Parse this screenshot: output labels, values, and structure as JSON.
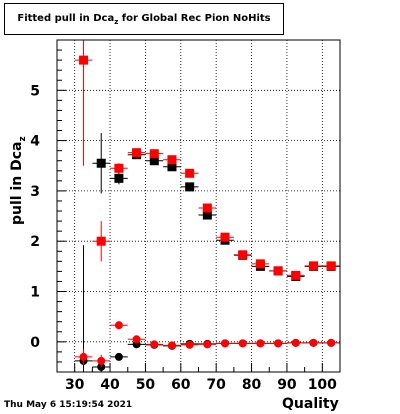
{
  "title": {
    "main": "Fitted pull in Dca",
    "sub": "z",
    "rest": " for Global Rec Pion NoHits"
  },
  "axes": {
    "ylabel_main": "pull in Dca",
    "ylabel_sub": "z",
    "xlabel": "Quality"
  },
  "timestamp": "Thu May  6 15:19:54 2021",
  "chart_data": {
    "type": "scatter",
    "xlim": [
      25,
      105
    ],
    "ylim": [
      -0.6,
      6.0
    ],
    "x_ticks": [
      30,
      40,
      50,
      60,
      70,
      80,
      90,
      100
    ],
    "y_ticks": [
      0,
      1,
      2,
      3,
      4,
      5
    ],
    "grid": true,
    "series": [
      {
        "marker": "square",
        "color": "#000000",
        "points": [
          {
            "x": 37.5,
            "y": 3.55,
            "xerr": 2.5,
            "yerr": 0.6
          },
          {
            "x": 42.5,
            "y": 3.25,
            "xerr": 2.5,
            "yerr": 0.12
          },
          {
            "x": 47.5,
            "y": 3.72,
            "xerr": 2.5,
            "yerr": 0.05
          },
          {
            "x": 52.5,
            "y": 3.6,
            "xerr": 2.5,
            "yerr": 0.05
          },
          {
            "x": 57.5,
            "y": 3.48,
            "xerr": 2.5,
            "yerr": 0.05
          },
          {
            "x": 62.5,
            "y": 3.08,
            "xerr": 2.5,
            "yerr": 0.05
          },
          {
            "x": 67.5,
            "y": 2.52,
            "xerr": 2.5,
            "yerr": 0.05
          },
          {
            "x": 72.5,
            "y": 2.02,
            "xerr": 2.5,
            "yerr": 0.04
          },
          {
            "x": 77.5,
            "y": 1.72,
            "xerr": 2.5,
            "yerr": 0.04
          },
          {
            "x": 82.5,
            "y": 1.5,
            "xerr": 2.5,
            "yerr": 0.04
          },
          {
            "x": 87.5,
            "y": 1.41,
            "xerr": 2.5,
            "yerr": 0.04
          },
          {
            "x": 92.5,
            "y": 1.3,
            "xerr": 2.5,
            "yerr": 0.04
          },
          {
            "x": 97.5,
            "y": 1.5,
            "xerr": 2.5,
            "yerr": 0.04
          },
          {
            "x": 102.5,
            "y": 1.5,
            "xerr": 2.5,
            "yerr": 0.04
          }
        ]
      },
      {
        "marker": "square",
        "color": "#ff0000",
        "points": [
          {
            "x": 32.5,
            "y": 5.6,
            "xerr": 2.5,
            "yerr": 2.1
          },
          {
            "x": 37.5,
            "y": 2.0,
            "xerr": 2.5,
            "yerr": 0.4
          },
          {
            "x": 42.5,
            "y": 3.45,
            "xerr": 2.5,
            "yerr": 0.1
          },
          {
            "x": 47.5,
            "y": 3.76,
            "xerr": 2.5,
            "yerr": 0.05
          },
          {
            "x": 52.5,
            "y": 3.74,
            "xerr": 2.5,
            "yerr": 0.05
          },
          {
            "x": 57.5,
            "y": 3.62,
            "xerr": 2.5,
            "yerr": 0.05
          },
          {
            "x": 62.5,
            "y": 3.35,
            "xerr": 2.5,
            "yerr": 0.05
          },
          {
            "x": 67.5,
            "y": 2.66,
            "xerr": 2.5,
            "yerr": 0.05
          },
          {
            "x": 72.5,
            "y": 2.08,
            "xerr": 2.5,
            "yerr": 0.04
          },
          {
            "x": 77.5,
            "y": 1.73,
            "xerr": 2.5,
            "yerr": 0.04
          },
          {
            "x": 82.5,
            "y": 1.55,
            "xerr": 2.5,
            "yerr": 0.04
          },
          {
            "x": 87.5,
            "y": 1.41,
            "xerr": 2.5,
            "yerr": 0.04
          },
          {
            "x": 92.5,
            "y": 1.32,
            "xerr": 2.5,
            "yerr": 0.04
          },
          {
            "x": 97.5,
            "y": 1.51,
            "xerr": 2.5,
            "yerr": 0.04
          },
          {
            "x": 102.5,
            "y": 1.51,
            "xerr": 2.5,
            "yerr": 0.04
          }
        ]
      },
      {
        "marker": "circle",
        "color": "#000000",
        "points": [
          {
            "x": 32.5,
            "y": -0.38,
            "xerr": 2.5,
            "yerr": 2.3
          },
          {
            "x": 37.5,
            "y": -0.5,
            "xerr": 2.5,
            "yerr": 0.15
          },
          {
            "x": 42.5,
            "y": -0.3,
            "xerr": 2.5,
            "yerr": 0.05
          },
          {
            "x": 47.5,
            "y": -0.05,
            "xerr": 2.5,
            "yerr": 0.03
          },
          {
            "x": 52.5,
            "y": -0.06,
            "xerr": 2.5,
            "yerr": 0.02
          },
          {
            "x": 57.5,
            "y": -0.08,
            "xerr": 2.5,
            "yerr": 0.02
          },
          {
            "x": 62.5,
            "y": -0.04,
            "xerr": 2.5,
            "yerr": 0.02
          },
          {
            "x": 67.5,
            "y": -0.04,
            "xerr": 2.5,
            "yerr": 0.02
          },
          {
            "x": 72.5,
            "y": -0.03,
            "xerr": 2.5,
            "yerr": 0.02
          },
          {
            "x": 77.5,
            "y": -0.03,
            "xerr": 2.5,
            "yerr": 0.02
          },
          {
            "x": 82.5,
            "y": -0.03,
            "xerr": 2.5,
            "yerr": 0.02
          },
          {
            "x": 87.5,
            "y": -0.03,
            "xerr": 2.5,
            "yerr": 0.02
          },
          {
            "x": 92.5,
            "y": -0.02,
            "xerr": 2.5,
            "yerr": 0.02
          },
          {
            "x": 97.5,
            "y": -0.02,
            "xerr": 2.5,
            "yerr": 0.02
          },
          {
            "x": 102.5,
            "y": -0.02,
            "xerr": 2.5,
            "yerr": 0.02
          }
        ]
      },
      {
        "marker": "circle",
        "color": "#ff0000",
        "points": [
          {
            "x": 32.5,
            "y": -0.3,
            "xerr": 2.5,
            "yerr": 0.15
          },
          {
            "x": 37.5,
            "y": -0.38,
            "xerr": 2.5,
            "yerr": 0.12
          },
          {
            "x": 42.5,
            "y": 0.33,
            "xerr": 2.5,
            "yerr": 0.08
          },
          {
            "x": 47.5,
            "y": 0.05,
            "xerr": 2.5,
            "yerr": 0.04
          },
          {
            "x": 52.5,
            "y": -0.05,
            "xerr": 2.5,
            "yerr": 0.03
          },
          {
            "x": 57.5,
            "y": -0.07,
            "xerr": 2.5,
            "yerr": 0.02
          },
          {
            "x": 62.5,
            "y": -0.06,
            "xerr": 2.5,
            "yerr": 0.02
          },
          {
            "x": 67.5,
            "y": -0.05,
            "xerr": 2.5,
            "yerr": 0.02
          },
          {
            "x": 72.5,
            "y": -0.03,
            "xerr": 2.5,
            "yerr": 0.02
          },
          {
            "x": 77.5,
            "y": -0.03,
            "xerr": 2.5,
            "yerr": 0.02
          },
          {
            "x": 82.5,
            "y": -0.03,
            "xerr": 2.5,
            "yerr": 0.02
          },
          {
            "x": 87.5,
            "y": -0.03,
            "xerr": 2.5,
            "yerr": 0.02
          },
          {
            "x": 92.5,
            "y": -0.02,
            "xerr": 2.5,
            "yerr": 0.02
          },
          {
            "x": 97.5,
            "y": -0.02,
            "xerr": 2.5,
            "yerr": 0.02
          },
          {
            "x": 102.5,
            "y": -0.02,
            "xerr": 2.5,
            "yerr": 0.02
          }
        ]
      }
    ]
  }
}
